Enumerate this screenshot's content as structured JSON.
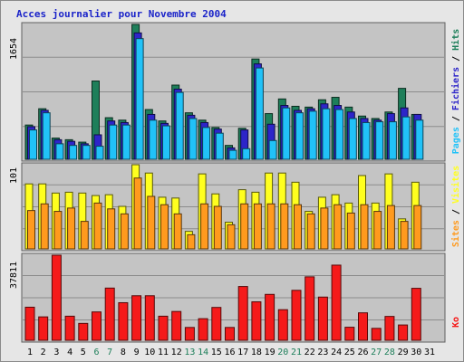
{
  "chart_data": {
    "type": "bar",
    "title": "Acces journalier pour Novembre 2004",
    "days": [
      "1",
      "2",
      "3",
      "4",
      "5",
      "6",
      "7",
      "8",
      "9",
      "10",
      "11",
      "12",
      "13",
      "14",
      "15",
      "16",
      "17",
      "18",
      "19",
      "20",
      "21",
      "22",
      "23",
      "24",
      "25",
      "26",
      "27",
      "28",
      "29",
      "30",
      "31"
    ],
    "weekend_days": [
      "6",
      "7",
      "13",
      "14",
      "20",
      "21",
      "27",
      "28"
    ],
    "top_panel": {
      "ymax_label": "1654",
      "ymax": 1654,
      "right_label": {
        "pages": "Pages",
        "sep1": " / ",
        "files": "Fichiers",
        "sep2": " / ",
        "hits": "Hits"
      },
      "series": [
        {
          "name": "Hits",
          "color": "#1e7f5a",
          "values": [
            420,
            620,
            260,
            240,
            210,
            960,
            510,
            480,
            1654,
            610,
            470,
            910,
            570,
            480,
            390,
            170,
            380,
            1230,
            560,
            740,
            650,
            640,
            730,
            760,
            640,
            530,
            500,
            580,
            870,
            550,
            0
          ]
        },
        {
          "name": "Fichiers",
          "color": "#2d25c9",
          "values": [
            400,
            600,
            240,
            220,
            190,
            300,
            470,
            450,
            1550,
            550,
            440,
            860,
            540,
            450,
            370,
            140,
            360,
            1170,
            430,
            660,
            600,
            620,
            680,
            660,
            580,
            500,
            480,
            560,
            630,
            550,
            0
          ]
        },
        {
          "name": "Pages",
          "color": "#21c2f8",
          "values": [
            360,
            570,
            190,
            170,
            170,
            160,
            420,
            420,
            1480,
            480,
            410,
            820,
            500,
            390,
            320,
            110,
            130,
            1120,
            230,
            630,
            570,
            590,
            620,
            610,
            500,
            450,
            460,
            460,
            520,
            480,
            0
          ]
        }
      ]
    },
    "middle_panel": {
      "ymax_label": "101",
      "ymax": 101,
      "right_label": {
        "sites": "Sites",
        "sep": " / ",
        "visites": "Visites"
      },
      "series": [
        {
          "name": "Visites",
          "color": "#ffff1f",
          "values": [
            78,
            78,
            67,
            68,
            67,
            64,
            65,
            51,
            101,
            91,
            62,
            61,
            21,
            90,
            66,
            32,
            71,
            68,
            91,
            91,
            80,
            45,
            62,
            65,
            55,
            88,
            55,
            90,
            36,
            80,
            0
          ]
        },
        {
          "name": "Sites",
          "color": "#ff9a1e",
          "values": [
            46,
            54,
            45,
            49,
            33,
            55,
            48,
            42,
            85,
            63,
            53,
            42,
            17,
            54,
            51,
            29,
            54,
            54,
            54,
            54,
            53,
            42,
            49,
            53,
            43,
            53,
            45,
            52,
            33,
            52,
            0
          ]
        }
      ]
    },
    "bottom_panel": {
      "ymax_label": "37811",
      "ymax": 37811,
      "right_label": "Ko",
      "series": [
        {
          "name": "Ko",
          "color": "#f51a1a",
          "values": [
            14700,
            10400,
            37811,
            10700,
            7500,
            12600,
            23200,
            16700,
            19800,
            19800,
            10700,
            12800,
            5700,
            9600,
            14600,
            5700,
            23900,
            17100,
            20400,
            13600,
            22200,
            28200,
            19200,
            33400,
            5800,
            12200,
            5300,
            10600,
            6800,
            23100,
            0
          ]
        }
      ]
    }
  }
}
